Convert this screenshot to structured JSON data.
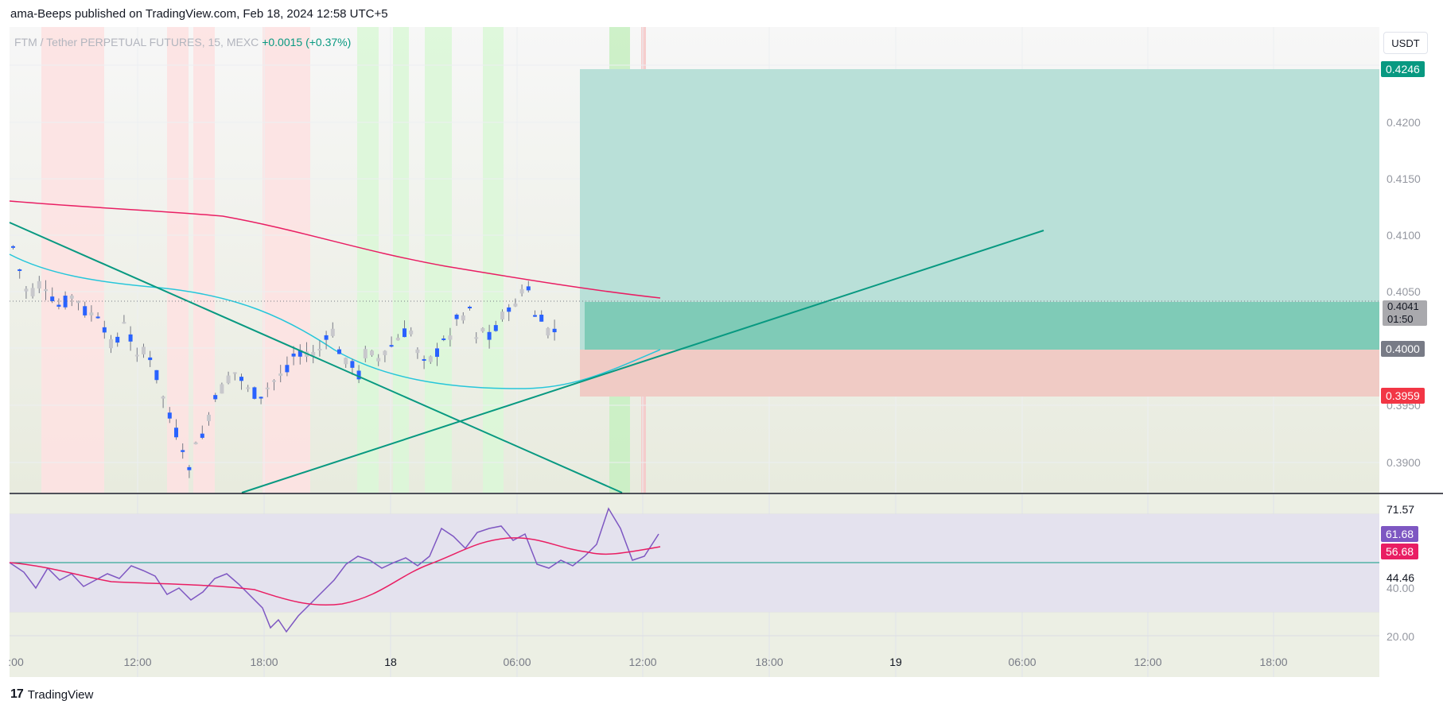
{
  "header": {
    "published_line": "ama-Beeps published on TradingView.com, Feb 18, 2024 12:58 UTC+5"
  },
  "legend": {
    "symbol": "FTM / Tether PERPETUAL FUTURES, 15, MEXC",
    "change": "+0.0015 (+0.37%)"
  },
  "currency_button": "USDT",
  "price_axis": {
    "labels": [
      "0.4200",
      "0.4150",
      "0.4100",
      "0.4050",
      "0.3950",
      "0.3900"
    ]
  },
  "price_tags": {
    "target": "0.4246",
    "current": "0.4041",
    "countdown": "01:50",
    "entry": "0.4000",
    "stop": "0.3959"
  },
  "rsi_axis": {
    "labels": [
      "71.57",
      "44.46",
      "40.00",
      "20.00"
    ]
  },
  "rsi_tags": {
    "rsi": "61.68",
    "ma": "56.68"
  },
  "time_axis": {
    "labels": [
      ":00",
      "12:00",
      "18:00",
      "18",
      "06:00",
      "12:00",
      "18:00",
      "19",
      "06:00",
      "12:00",
      "18:00"
    ]
  },
  "footer": {
    "brand": "TradingView",
    "logo": "17"
  },
  "colors": {
    "up": "#2962ff",
    "down": "#2962ff",
    "ema200": "#e91e63",
    "ema50": "#26c6da",
    "trendline": "#089981",
    "profit_zone": "#26a69a",
    "loss_zone": "#ef5350",
    "rsi_line": "#7e57c2",
    "rsi_ma": "#e91e63"
  }
}
